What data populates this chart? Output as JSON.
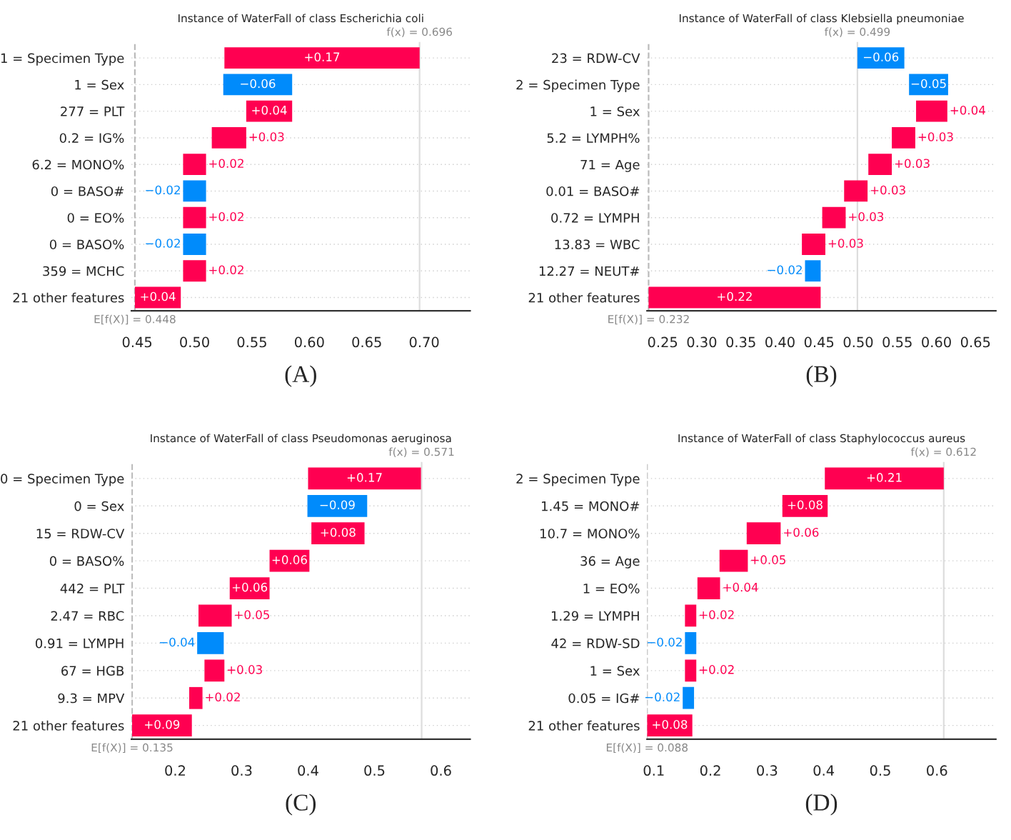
{
  "chart_data": [
    {
      "type": "bar",
      "orientation": "horizontal",
      "title": "Instance of WaterFall of class Escherichia coli",
      "categories": [
        "1 = Specimen Type",
        "1 = Sex",
        "277 = PLT",
        "0.2 = IG%",
        "6.2 = MONO%",
        "0 = BASO#",
        "0 = EO%",
        "0 = BASO%",
        "359 = MCHC",
        "21 other features"
      ],
      "values": [
        0.17,
        -0.06,
        0.04,
        0.03,
        0.02,
        -0.02,
        0.02,
        -0.02,
        0.02,
        0.04
      ],
      "base": [
        0.526,
        0.585,
        0.545,
        0.515,
        0.49,
        0.51,
        0.49,
        0.51,
        0.49,
        0.448
      ],
      "colors": [
        "#ff0051",
        "#008bfb",
        "#ff0051",
        "#ff0051",
        "#ff0051",
        "#008bfb",
        "#ff0051",
        "#008bfb",
        "#ff0051",
        "#ff0051"
      ],
      "value_labels": [
        "+0.17",
        "−0.06",
        "+0.04",
        "+0.03",
        "+0.02",
        "−0.02",
        "+0.02",
        "−0.02",
        "+0.02",
        "+0.04"
      ],
      "xlim": [
        0.445,
        0.74
      ],
      "xticks": [
        0.45,
        {
          "value": 0.5,
          "label": "0.50"
        },
        0.55,
        {
          "value": 0.6,
          "label": "0.60"
        },
        0.65,
        {
          "value": 0.7,
          "label": "0.70"
        }
      ],
      "ref_lines": [
        {
          "axis": "x",
          "value": 0.696,
          "label": "f(x) = 0.696",
          "color": "#dddddd"
        },
        {
          "axis": "x",
          "value": 0.448,
          "label": "E[f(X)] = 0.448",
          "color": "#bbbbbb",
          "line_style": "dashed"
        }
      ],
      "grid": "y",
      "annotations": [
        "(A)"
      ]
    },
    {
      "type": "bar",
      "orientation": "horizontal",
      "title": "Instance of WaterFall of class Klebsiella pneumoniae",
      "categories": [
        "23 = RDW-CV",
        "2 = Specimen Type",
        "1 = Sex",
        "5.2 = LYMPH%",
        "71 = Age",
        "0.01 = BASO#",
        "0.72 = LYMPH",
        "13.83 = WBC",
        "12.27 = NEUT#",
        "21 other features"
      ],
      "values": [
        -0.06,
        -0.05,
        0.04,
        0.03,
        0.03,
        0.03,
        0.03,
        0.03,
        -0.02,
        0.22
      ],
      "base": [
        0.559,
        0.615,
        0.574,
        0.543,
        0.513,
        0.482,
        0.454,
        0.428,
        0.452,
        0.232
      ],
      "colors": [
        "#008bfb",
        "#008bfb",
        "#ff0051",
        "#ff0051",
        "#ff0051",
        "#ff0051",
        "#ff0051",
        "#ff0051",
        "#008bfb",
        "#ff0051"
      ],
      "value_labels": [
        "−0.06",
        "−0.05",
        "+0.04",
        "+0.03",
        "+0.03",
        "+0.03",
        "+0.03",
        "+0.03",
        "−0.02",
        "+0.22"
      ],
      "xlim": [
        0.23,
        0.676
      ],
      "xticks": [
        0.25,
        {
          "value": 0.3,
          "label": "0.30"
        },
        0.35,
        {
          "value": 0.4,
          "label": "0.40"
        },
        0.45,
        {
          "value": 0.5,
          "label": "0.50"
        },
        0.55,
        {
          "value": 0.6,
          "label": "0.60"
        },
        0.65
      ],
      "ref_lines": [
        {
          "axis": "x",
          "value": 0.499,
          "label": "f(x) = 0.499",
          "color": "#dddddd"
        },
        {
          "axis": "x",
          "value": 0.232,
          "label": "E[f(X)] = 0.232",
          "color": "#bbbbbb",
          "line_style": "dashed"
        }
      ],
      "grid": "y",
      "annotations": [
        "(B)"
      ]
    },
    {
      "type": "bar",
      "orientation": "horizontal",
      "title": "Instance of WaterFall of class Pseudomonas aeruginosa",
      "categories": [
        "0 = Specimen Type",
        "0 = Sex",
        "15 = RDW-CV",
        "0 = BASO%",
        "442 = PLT",
        "2.47 = RBC",
        "0.91 = LYMPH",
        "67 = HGB",
        "9.3 = MPV",
        "21 other features"
      ],
      "values": [
        0.17,
        -0.09,
        0.08,
        0.06,
        0.06,
        0.05,
        -0.04,
        0.03,
        0.02,
        0.09
      ],
      "base": [
        0.4,
        0.489,
        0.405,
        0.342,
        0.282,
        0.235,
        0.273,
        0.244,
        0.221,
        0.135
      ],
      "colors": [
        "#ff0051",
        "#008bfb",
        "#ff0051",
        "#ff0051",
        "#ff0051",
        "#ff0051",
        "#008bfb",
        "#ff0051",
        "#ff0051",
        "#ff0051"
      ],
      "value_labels": [
        "+0.17",
        "−0.09",
        "+0.08",
        "+0.06",
        "+0.06",
        "+0.05",
        "−0.04",
        "+0.03",
        "+0.02",
        "+0.09"
      ],
      "xlim": [
        0.134,
        0.644
      ],
      "xticks": [
        0.2,
        0.3,
        0.4,
        0.5,
        0.6
      ],
      "ref_lines": [
        {
          "axis": "x",
          "value": 0.571,
          "label": "f(x) = 0.571",
          "color": "#dddddd"
        },
        {
          "axis": "x",
          "value": 0.135,
          "label": "E[f(X)] = 0.135",
          "color": "#bbbbbb",
          "line_style": "dashed"
        }
      ],
      "grid": "y",
      "annotations": [
        "(C)"
      ]
    },
    {
      "type": "bar",
      "orientation": "horizontal",
      "title": "Instance of WaterFall of class Staphylococcus aureus",
      "categories": [
        "2 = Specimen Type",
        "1.45 = MONO#",
        "10.7 = MONO%",
        "36 = Age",
        "1 = EO%",
        "1.29 = LYMPH",
        "42 = RDW-SD",
        "1 = Sex",
        "0.05 = IG#",
        "21 other features"
      ],
      "values": [
        0.21,
        0.08,
        0.06,
        0.05,
        0.04,
        0.02,
        -0.02,
        0.02,
        -0.02,
        0.08
      ],
      "base": [
        0.402,
        0.327,
        0.264,
        0.216,
        0.177,
        0.155,
        0.175,
        0.155,
        0.171,
        0.088
      ],
      "colors": [
        "#ff0051",
        "#ff0051",
        "#ff0051",
        "#ff0051",
        "#ff0051",
        "#ff0051",
        "#008bfb",
        "#ff0051",
        "#008bfb",
        "#ff0051"
      ],
      "value_labels": [
        "+0.21",
        "+0.08",
        "+0.06",
        "+0.05",
        "+0.04",
        "+0.02",
        "−0.02",
        "+0.02",
        "−0.02",
        "+0.08"
      ],
      "xlim": [
        0.088,
        0.704
      ],
      "xticks": [
        0.1,
        0.2,
        0.3,
        0.4,
        0.5,
        0.6
      ],
      "ref_lines": [
        {
          "axis": "x",
          "value": 0.612,
          "label": "f(x) = 0.612",
          "color": "#dddddd"
        },
        {
          "axis": "x",
          "value": 0.088,
          "label": "E[f(X)] = 0.088",
          "color": "#bbbbbb",
          "line_style": "dashed"
        }
      ],
      "grid": "y",
      "annotations": [
        "(D)"
      ]
    }
  ]
}
